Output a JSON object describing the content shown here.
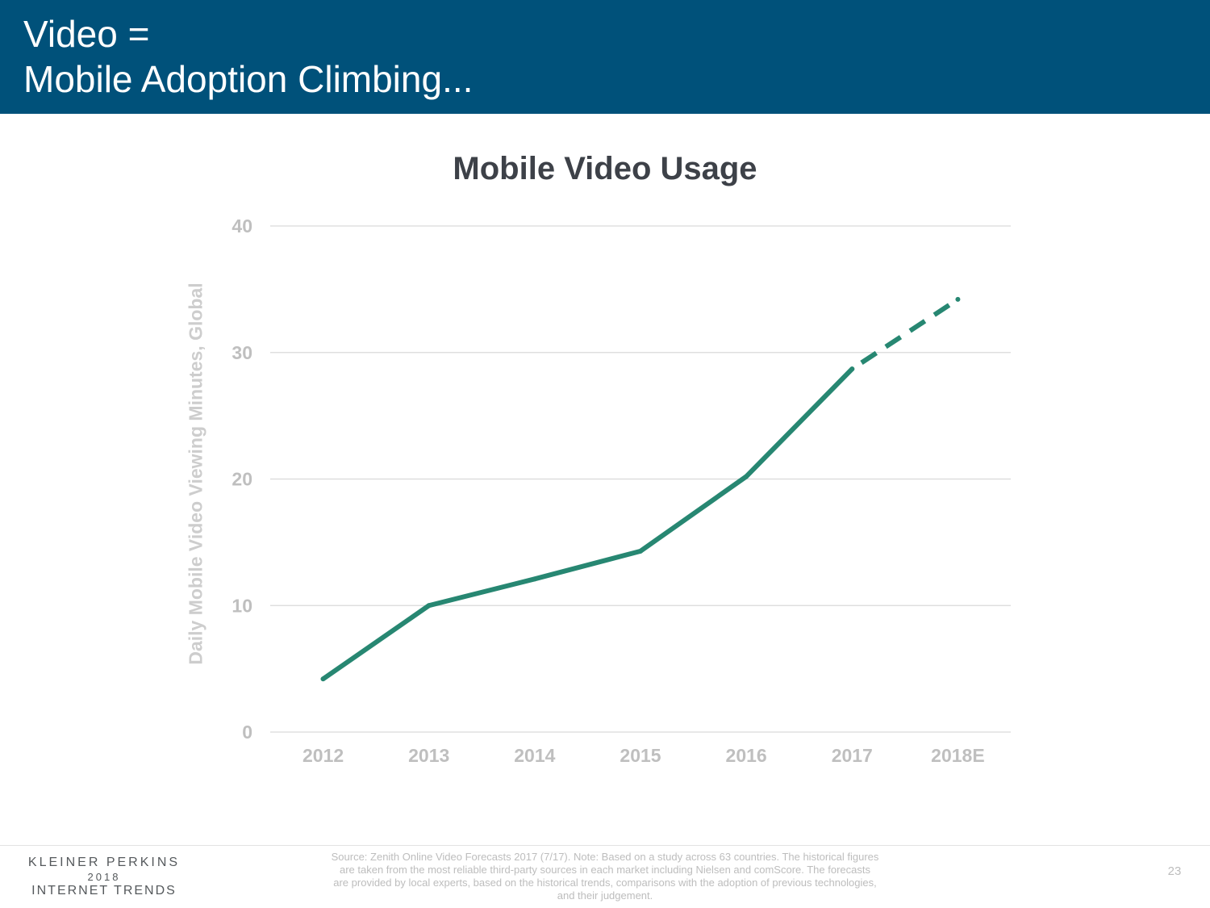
{
  "header": {
    "title_line1": "Video =",
    "title_line2": "Mobile Adoption Climbing..."
  },
  "chart_data": {
    "type": "line",
    "title": "Mobile Video Usage",
    "xlabel": "",
    "ylabel": "Daily Mobile Video Viewing Minutes, Global",
    "categories": [
      "2012",
      "2013",
      "2014",
      "2015",
      "2016",
      "2017",
      "2018E"
    ],
    "series": [
      {
        "values": [
          4.2,
          10.0,
          12.1,
          14.3,
          20.2,
          28.7,
          34.2
        ],
        "color": "#278772",
        "dashed_from_index": 5
      }
    ],
    "ylim": [
      0,
      40
    ],
    "yticks": [
      0,
      10,
      20,
      30,
      40
    ],
    "grid": true,
    "colors": {
      "series": "#278772",
      "grid": "#d9d9d9",
      "ticks": "#bfbfbf"
    }
  },
  "footer": {
    "logo_line1": "KLEINER PERKINS",
    "logo_line2": "2018",
    "logo_line3": "INTERNET TRENDS",
    "source": "Source: Zenith Online Video Forecasts 2017 (7/17).  Note: Based on a study across 63 countries. The historical figures are taken from the most reliable third-party sources in each market including Nielsen and comScore. The forecasts are provided by local experts, based on the historical trends, comparisons with the adoption of previous technologies, and their judgement.",
    "page_number": "23"
  }
}
